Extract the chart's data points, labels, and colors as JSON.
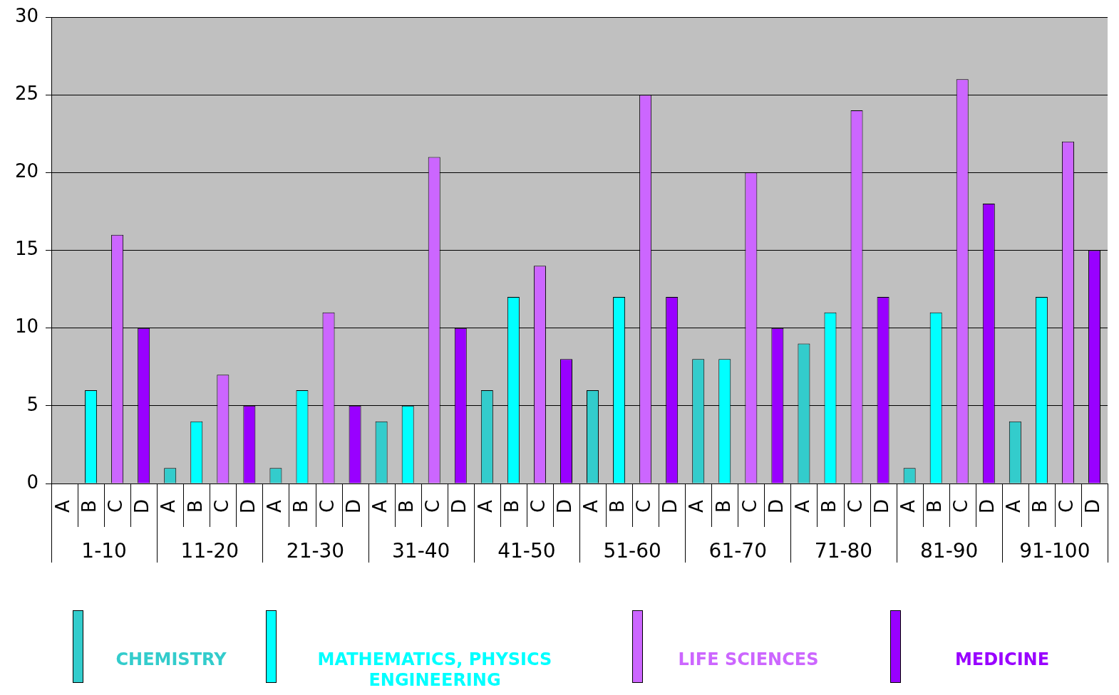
{
  "chart_data": {
    "type": "bar",
    "categories": [
      "A",
      "B",
      "C",
      "D",
      "A",
      "B",
      "C",
      "D",
      "A",
      "B",
      "C",
      "D",
      "A",
      "B",
      "C",
      "D",
      "A",
      "B",
      "C",
      "D",
      "A",
      "B",
      "C",
      "D",
      "A",
      "B",
      "C",
      "D",
      "A",
      "B",
      "C",
      "D",
      "A",
      "B",
      "C",
      "D",
      "A",
      "B",
      "C",
      "D"
    ],
    "annotations": [
      "1-10",
      "11-20",
      "21-30",
      "31-40",
      "41-50",
      "51-60",
      "61-70",
      "71-80",
      "81-90",
      "91-100"
    ],
    "series": [
      {
        "name": "CHEMISTRY",
        "color": "#33cccc",
        "values": [
          0,
          null,
          null,
          null,
          1,
          null,
          null,
          null,
          1,
          null,
          null,
          null,
          4,
          null,
          null,
          null,
          6,
          null,
          null,
          null,
          6,
          null,
          null,
          null,
          8,
          null,
          null,
          null,
          9,
          null,
          null,
          null,
          1,
          null,
          null,
          null,
          4,
          null,
          null,
          null
        ]
      },
      {
        "name": "MATHEMATICS, PHYSICS ENGINEERING",
        "color": "#00ffff",
        "values": [
          null,
          6,
          null,
          null,
          null,
          4,
          null,
          null,
          null,
          6,
          null,
          null,
          null,
          5,
          null,
          null,
          null,
          12,
          null,
          null,
          null,
          12,
          null,
          null,
          null,
          8,
          null,
          null,
          null,
          11,
          null,
          null,
          null,
          11,
          null,
          null,
          null,
          12,
          null,
          null
        ]
      },
      {
        "name": "LIFE SCIENCES",
        "color": "#cc66ff",
        "values": [
          null,
          null,
          16,
          null,
          null,
          null,
          7,
          null,
          null,
          null,
          11,
          null,
          null,
          null,
          21,
          null,
          null,
          null,
          14,
          null,
          null,
          null,
          25,
          null,
          null,
          null,
          20,
          null,
          null,
          null,
          24,
          null,
          null,
          null,
          26,
          null,
          null,
          null,
          22,
          null
        ]
      },
      {
        "name": "MEDICINE",
        "color": "#9900ff",
        "values": [
          null,
          null,
          null,
          10,
          null,
          null,
          null,
          5,
          null,
          null,
          null,
          5,
          null,
          null,
          null,
          10,
          null,
          null,
          null,
          8,
          null,
          null,
          null,
          12,
          null,
          null,
          null,
          10,
          null,
          null,
          null,
          12,
          null,
          null,
          null,
          18,
          null,
          null,
          null,
          15
        ]
      }
    ],
    "ylim": [
      0,
      30
    ],
    "yticks": [
      0,
      5,
      10,
      15,
      20,
      25,
      30
    ],
    "grid": "y",
    "legend": "bottom"
  }
}
